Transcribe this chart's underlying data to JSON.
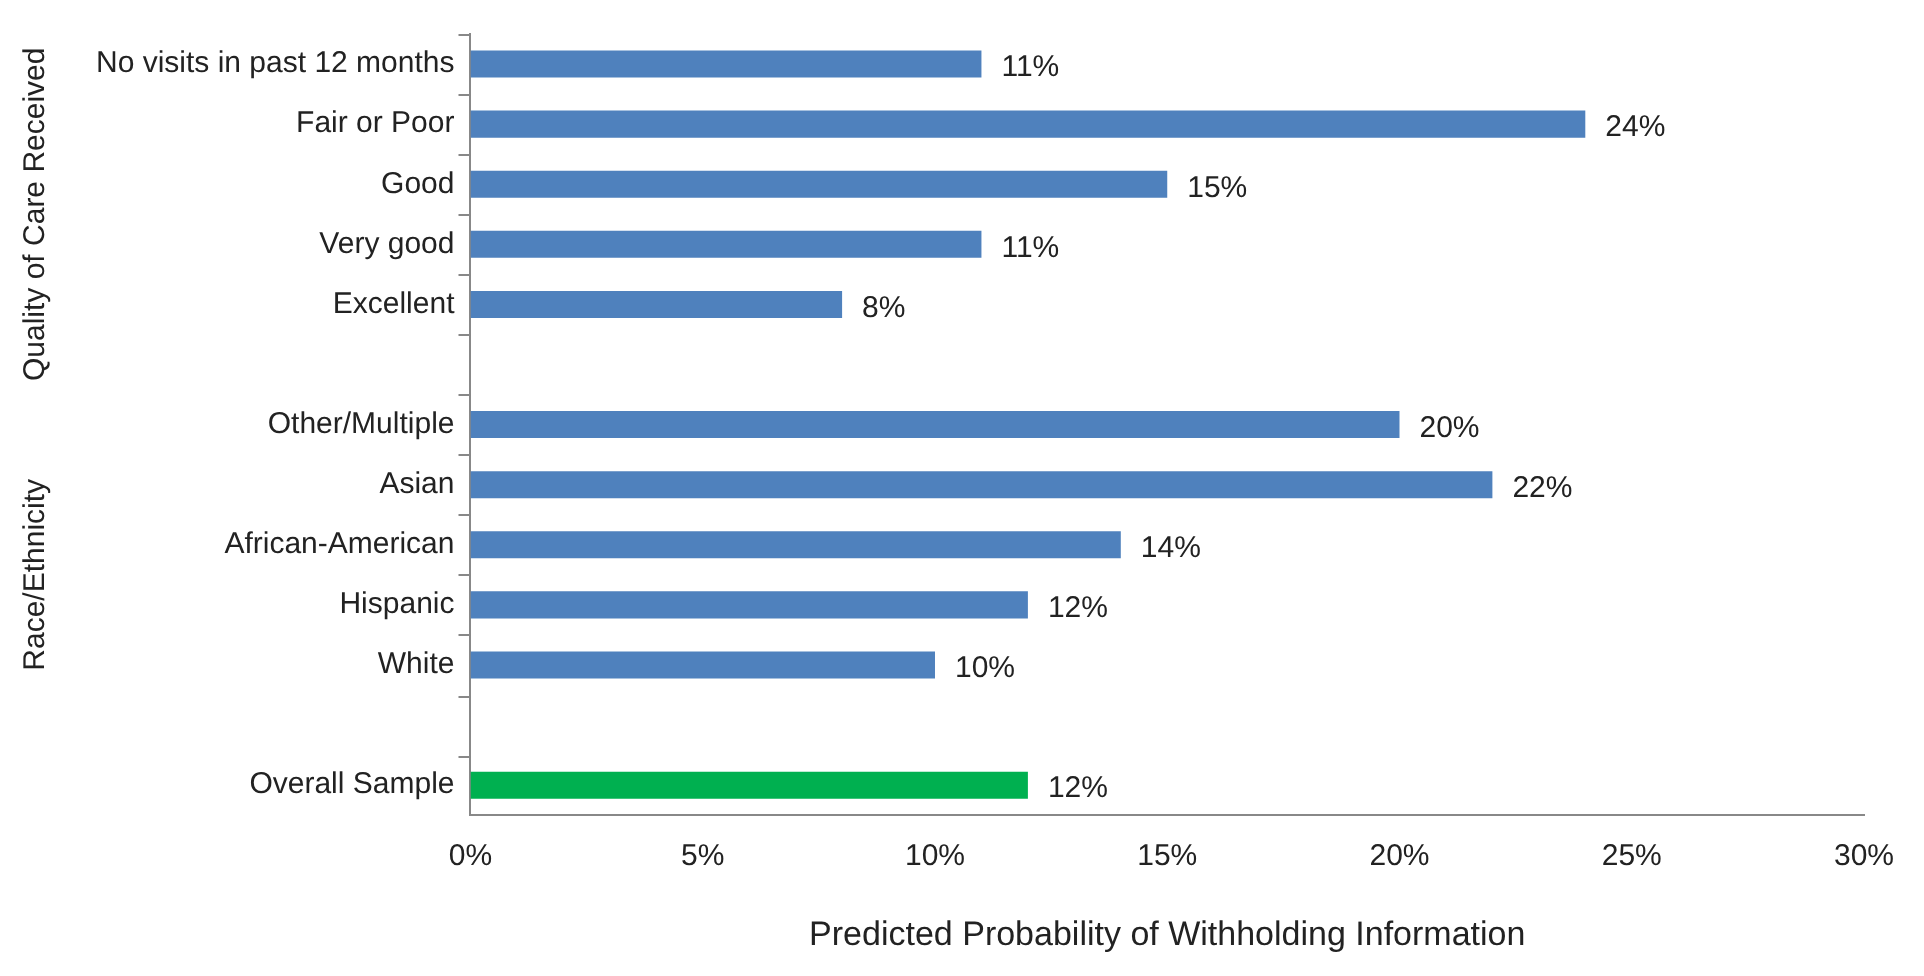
{
  "chart_data": {
    "type": "bar",
    "orientation": "horizontal",
    "xlabel": "Predicted Probability of Withholding Information",
    "categories": [
      "No visits in past 12 months",
      "Fair or Poor",
      "Good",
      "Very good",
      "Excellent",
      null,
      "Other/Multiple",
      "Asian",
      "African-American",
      "Hispanic",
      "White",
      null,
      "Overall Sample"
    ],
    "values": [
      11,
      24,
      15,
      11,
      8,
      null,
      20,
      22,
      14,
      12,
      10,
      null,
      12
    ],
    "value_labels": [
      "11%",
      "24%",
      "15%",
      "11%",
      "8%",
      null,
      "20%",
      "22%",
      "14%",
      "12%",
      "10%",
      null,
      "12%"
    ],
    "colors": [
      "#4f81bd",
      "#4f81bd",
      "#4f81bd",
      "#4f81bd",
      "#4f81bd",
      "#4f81bd",
      "#4f81bd",
      "#4f81bd",
      "#4f81bd",
      "#4f81bd",
      "#4f81bd",
      "#4f81bd",
      "#00b050"
    ],
    "xlim": [
      0,
      30
    ],
    "xticks": [
      {
        "value": 0,
        "label": "0%"
      },
      {
        "value": 5,
        "label": "5%"
      },
      {
        "value": 10,
        "label": "10%"
      },
      {
        "value": 15,
        "label": "15%"
      },
      {
        "value": 20,
        "label": "20%"
      },
      {
        "value": 25,
        "label": "25%"
      },
      {
        "value": 30,
        "label": "30%"
      }
    ],
    "annotations": [
      "Quality of Care Received",
      "Race/Ethnicity"
    ],
    "grid": false,
    "legend": false
  }
}
